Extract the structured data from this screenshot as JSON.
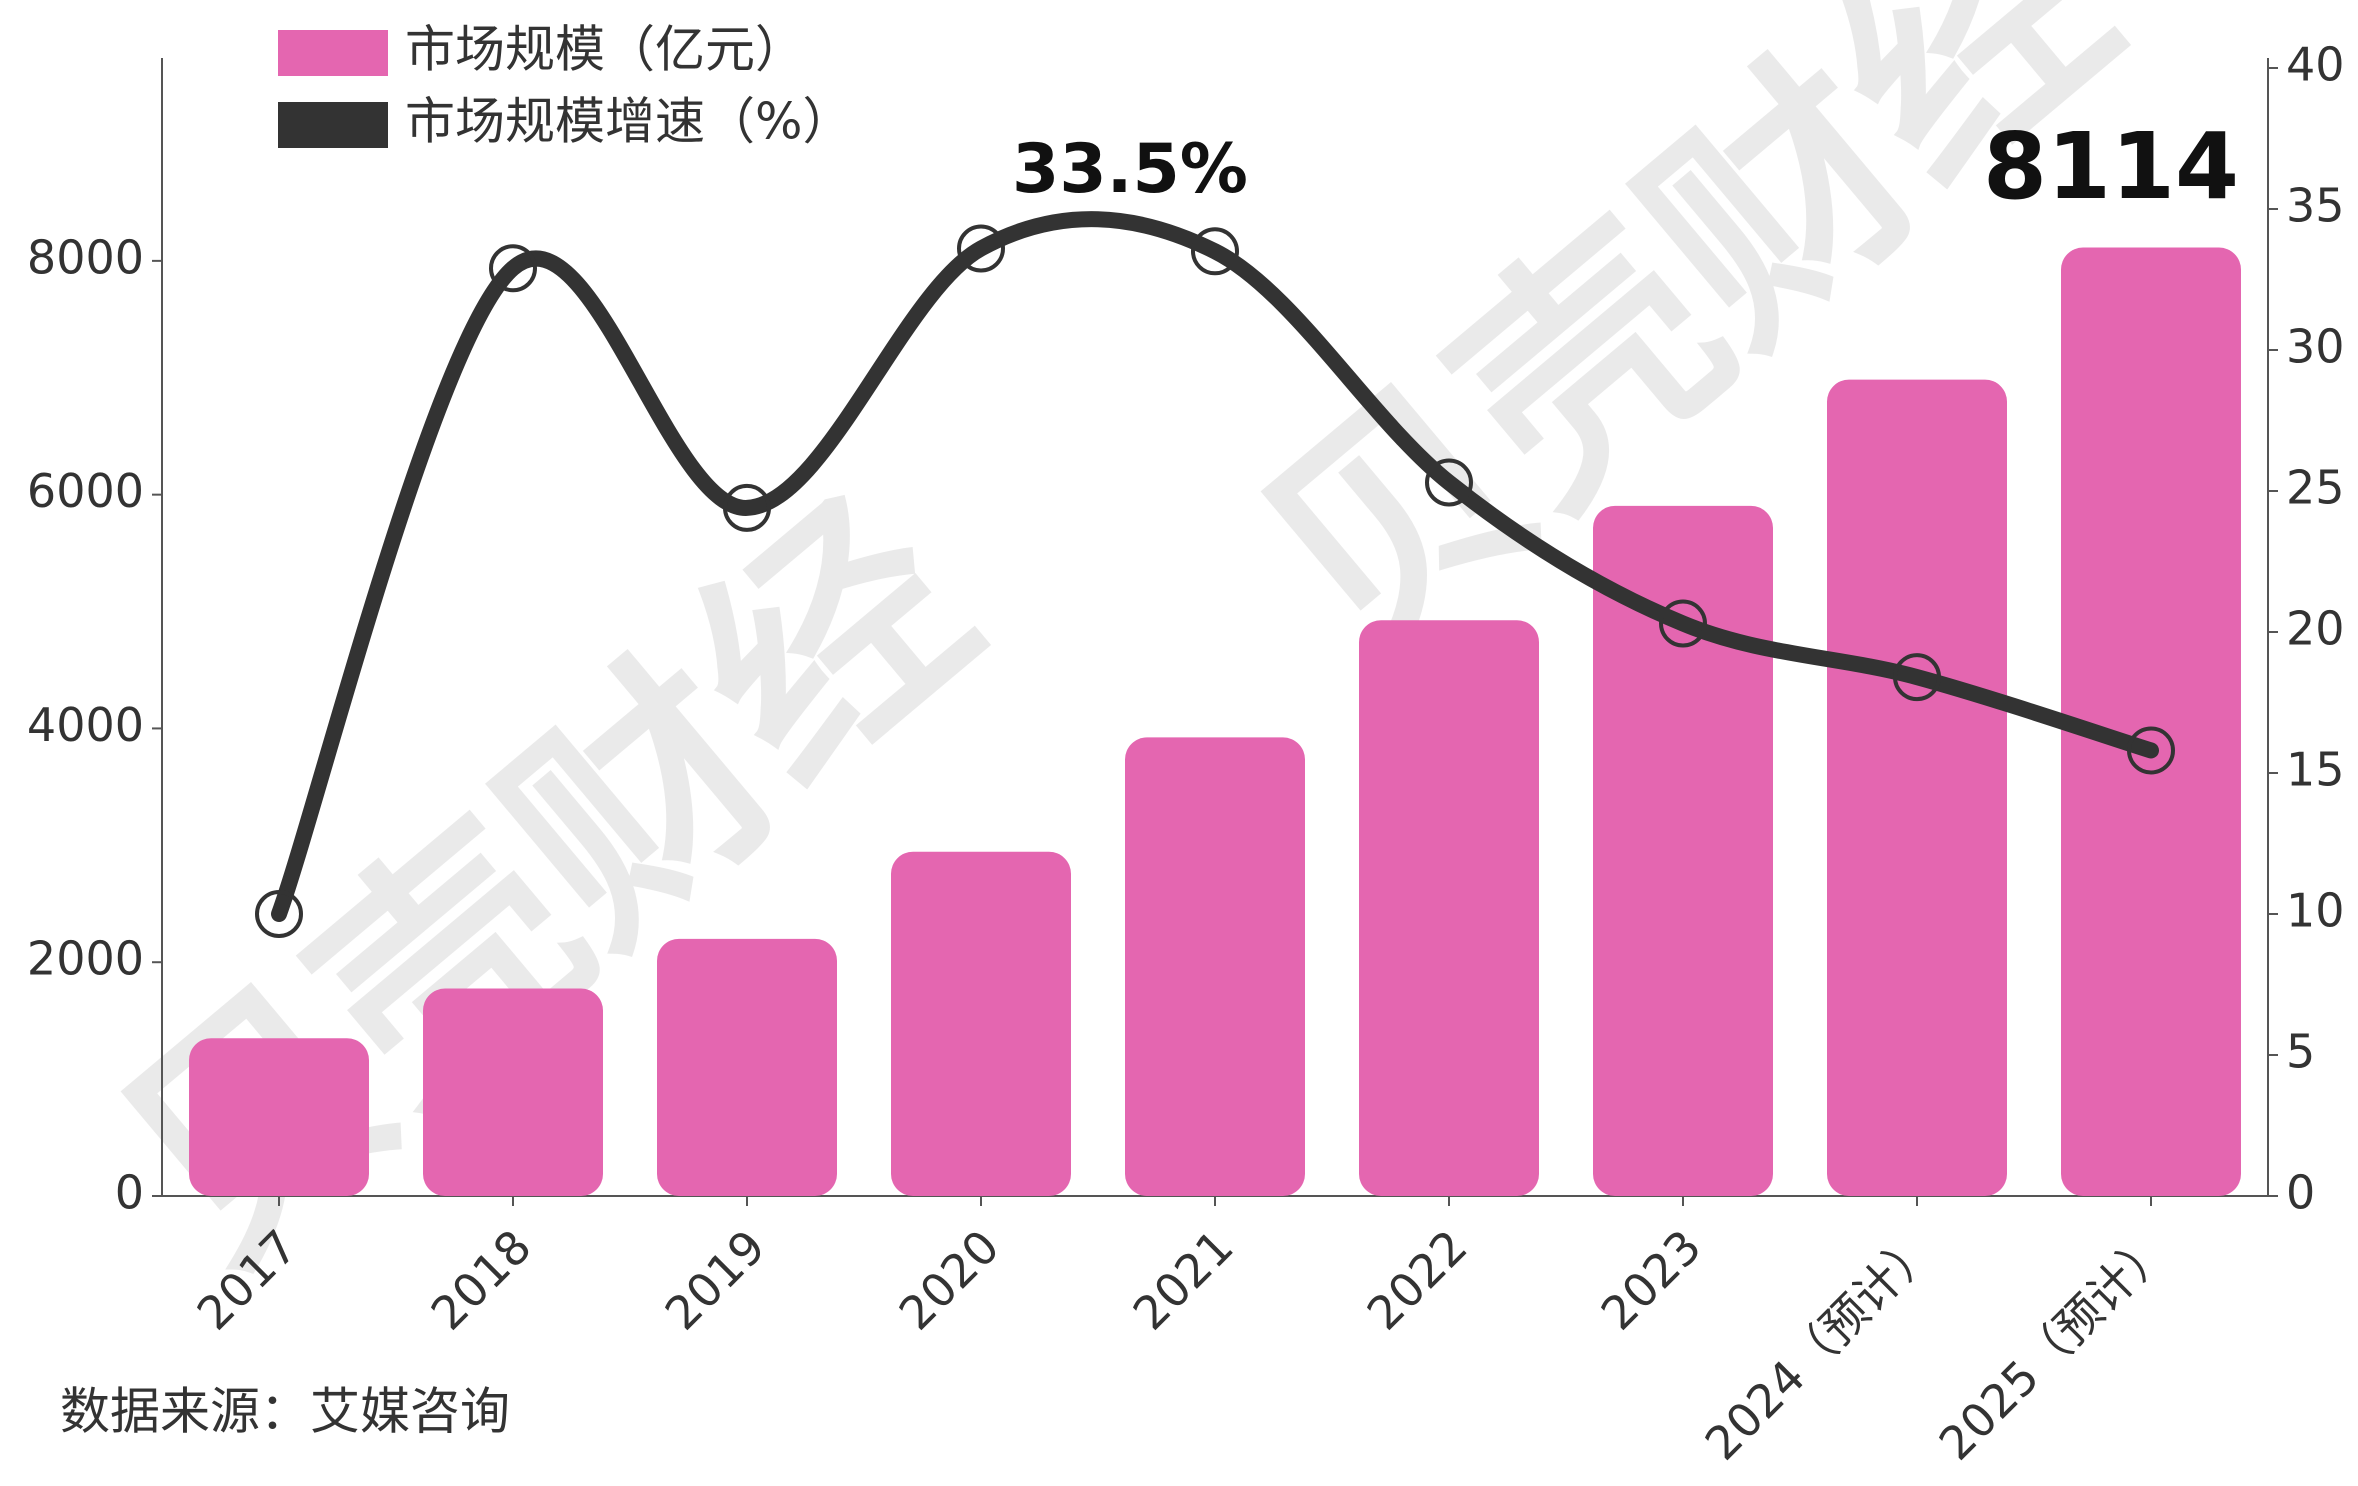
{
  "chart_data": {
    "type": "bar-line",
    "categories": [
      "2017",
      "2018",
      "2019",
      "2020",
      "2021",
      "2022",
      "2023",
      "2024（预计）",
      "2025（预计）"
    ],
    "series": [
      {
        "name": "市场规模（亿元）",
        "type": "bar",
        "color": "#e466b0",
        "axis": "y",
        "values": [
          1350,
          1775,
          2200,
          2945,
          3923,
          4926,
          5904,
          6984,
          8114
        ],
        "value_labels": [
          null,
          null,
          null,
          null,
          null,
          null,
          null,
          null,
          "8114"
        ]
      },
      {
        "name": "市场规模增速（%）",
        "type": "line",
        "color": "#333333",
        "axis": "y2",
        "values": [
          10.0,
          32.9,
          24.4,
          33.6,
          33.5,
          25.3,
          20.3,
          18.4,
          15.8
        ],
        "value_labels": [
          null,
          null,
          null,
          null,
          "33.5%",
          null,
          null,
          null,
          null
        ]
      }
    ],
    "ylim": [
      0,
      9650
    ],
    "yticks": [
      0,
      2000,
      4000,
      6000,
      8000
    ],
    "y2lim": [
      0,
      40
    ],
    "y2ticks": [
      0,
      5,
      10,
      15,
      20,
      25,
      30,
      35,
      40
    ],
    "grid": false,
    "legend": "top-left",
    "source": "数据来源：艾媒咨询",
    "watermark": "贝壳财经"
  }
}
